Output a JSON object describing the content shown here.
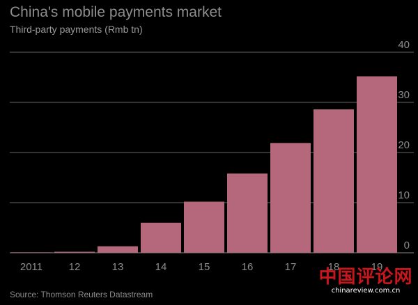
{
  "source": "Source: Thomson Reuters Datastream",
  "watermark": {
    "text": "中国评论网",
    "url": "chinareview.com.cn"
  },
  "chart_data": {
    "type": "bar",
    "title": "China's mobile payments market",
    "subtitle": "Third-party payments (Rmb tn)",
    "categories": [
      "2011",
      "12",
      "13",
      "14",
      "15",
      "16",
      "17",
      "18",
      "19"
    ],
    "values": [
      0.1,
      0.2,
      1.3,
      6.0,
      10.2,
      15.8,
      21.9,
      28.6,
      35.2
    ],
    "ylim": [
      0,
      40
    ],
    "yticks": [
      0,
      10,
      20,
      30,
      40
    ],
    "grid": true,
    "y_axis_position": "right",
    "bar_color": "#b5687b",
    "grid_color": "#666666",
    "text_color": "#8d8d8d"
  }
}
